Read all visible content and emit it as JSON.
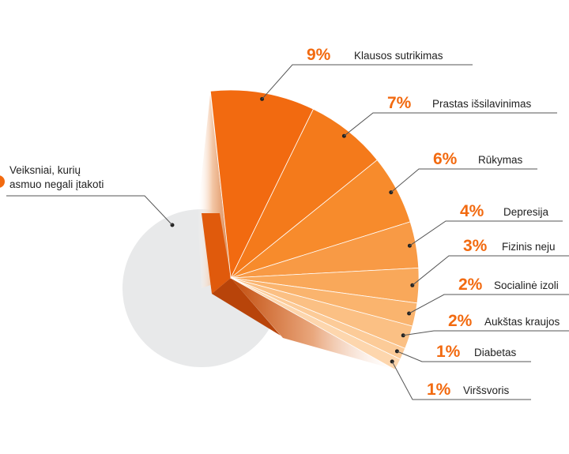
{
  "chart_data": {
    "type": "pie",
    "title": "",
    "base_slice": {
      "label": "Veiksniai, kurių asmuo negali įtakoti",
      "label_lines": [
        "Veiksniai, kurių",
        "asmuo negali įtakoti"
      ]
    },
    "exploded_slices": [
      {
        "label": "Klausos sutrikimas",
        "value": 9,
        "value_text": "9%",
        "color": "#f26a10"
      },
      {
        "label": "Prastas išsilavinimas",
        "value": 7,
        "value_text": "7%",
        "color": "#f47a1b"
      },
      {
        "label": "Rūkymas",
        "value": 6,
        "value_text": "6%",
        "color": "#f78b2c"
      },
      {
        "label": "Depresija",
        "value": 4,
        "value_text": "4%",
        "color": "#f89a45"
      },
      {
        "label": "Fizinis neju",
        "value": 3,
        "value_text": "3%",
        "color": "#f9a85a"
      },
      {
        "label": "Socialinė izoli",
        "value": 2,
        "value_text": "2%",
        "color": "#fab46e"
      },
      {
        "label": "Aukštas kraujos",
        "value": 2,
        "value_text": "2%",
        "color": "#fbc084"
      },
      {
        "label": "Diabetas",
        "value": 1,
        "value_text": "1%",
        "color": "#fccb98"
      },
      {
        "label": "Viršsvoris",
        "value": 1,
        "value_text": "1%",
        "color": "#fdd6ad"
      }
    ],
    "colors": {
      "base": "#e8e9ea",
      "accent": "#f26a10",
      "wedge_left": "#e05a0c",
      "wedge_right": "#b8440a",
      "leader": "#555555",
      "text": "#222222"
    }
  }
}
